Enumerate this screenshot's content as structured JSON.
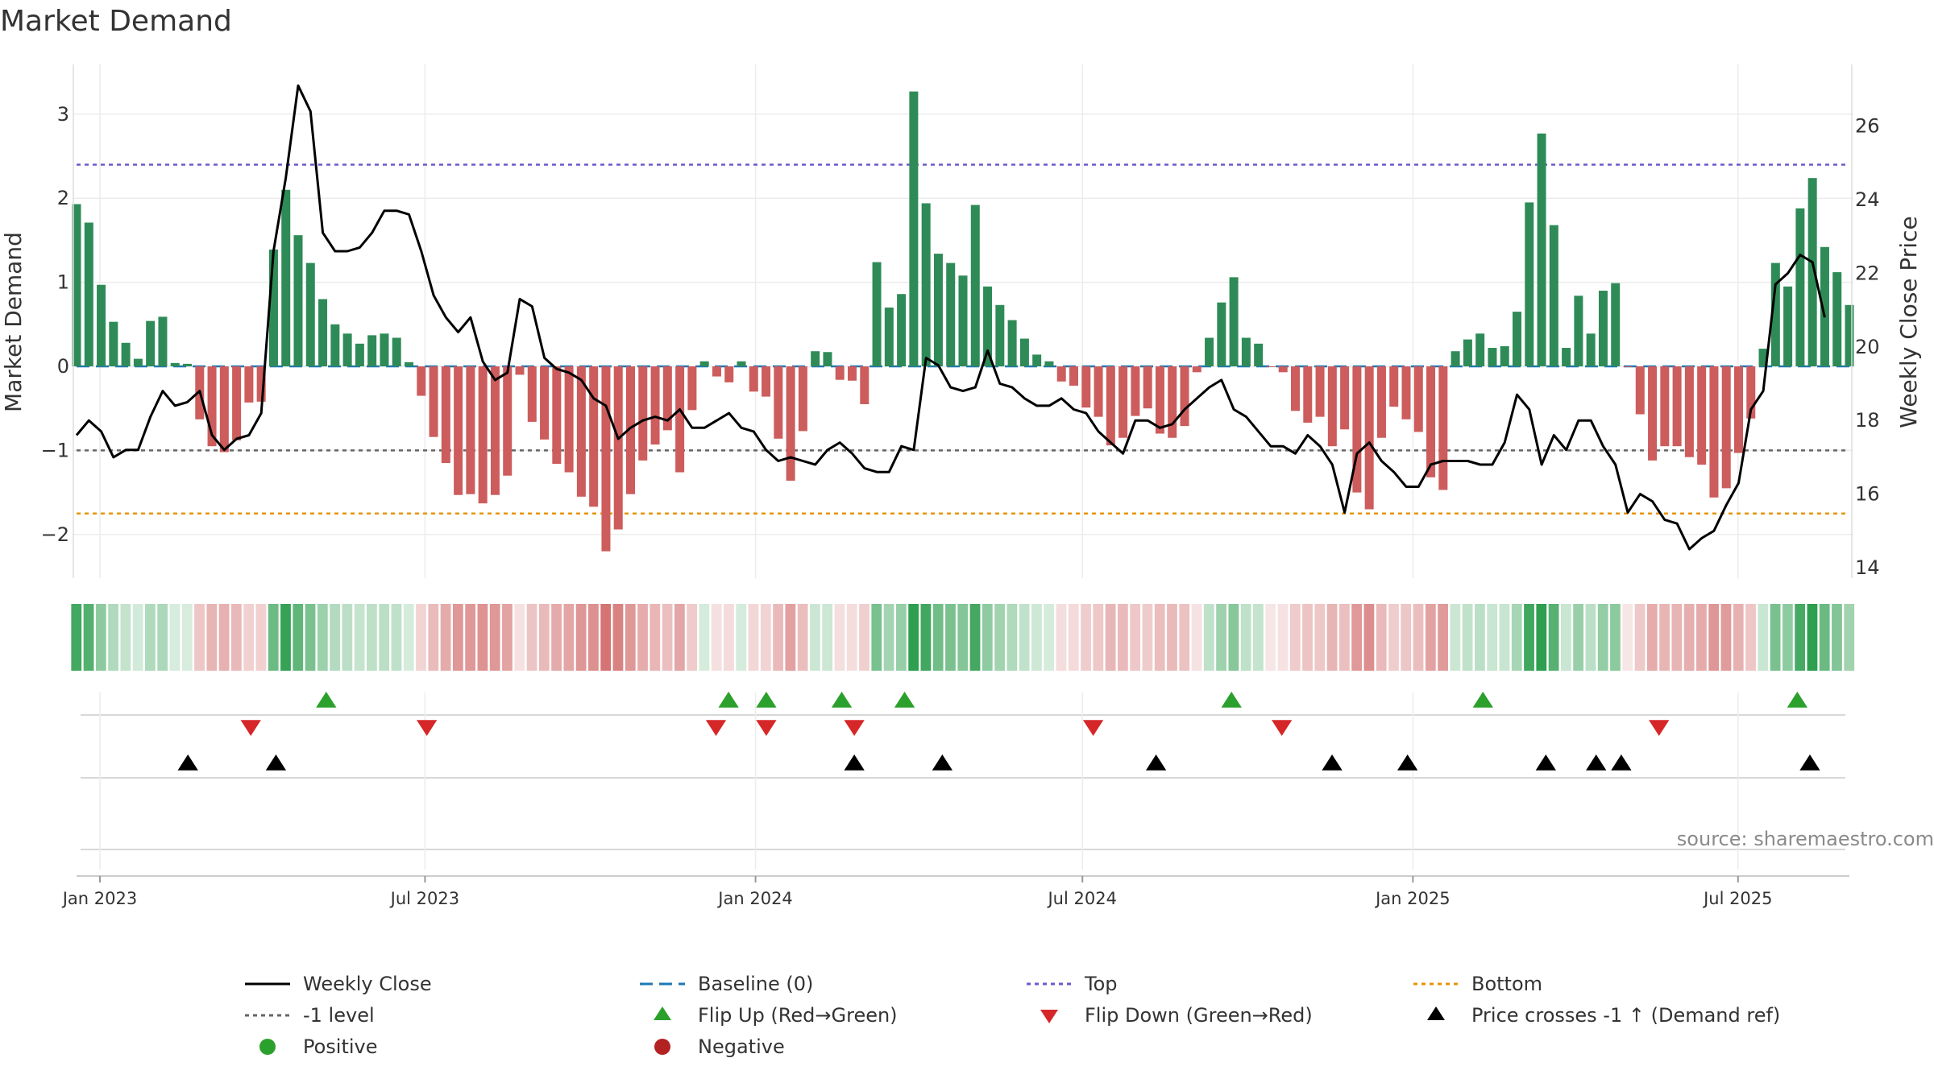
{
  "chart_data": {
    "type": "bar+line",
    "title": "Market Demand",
    "ylabel_left": "Market Demand",
    "ylabel_right": "Weekly Close Price",
    "ylim_left": [
      -2.5,
      3.6
    ],
    "ylim_right": [
      13.6,
      27.5
    ],
    "yticks_left": [
      3,
      2,
      1,
      0,
      -1,
      -2
    ],
    "yticks_left_labels": [
      "3",
      "2",
      "1",
      "0",
      "−1",
      "−2"
    ],
    "yticks_right": [
      26,
      24,
      22,
      20,
      18,
      16,
      14
    ],
    "x_start": "2022-12-19",
    "x_end": "2025-09-01",
    "x_interval": "weekly",
    "x_tick_dates": [
      "2023-01-01",
      "2023-07-01",
      "2024-01-01",
      "2024-07-01",
      "2025-01-01",
      "2025-07-01"
    ],
    "x_tick_labels": [
      "Jan 2023",
      "Jul 2023",
      "Jan 2024",
      "Jul 2024",
      "Jan 2025",
      "Jul 2025"
    ],
    "reference_lines": {
      "top": 2.4,
      "bottom": -1.75,
      "minus_one": -1,
      "baseline": 0
    },
    "demand": [
      1.93,
      1.71,
      0.97,
      0.53,
      0.28,
      0.09,
      0.54,
      0.59,
      0.04,
      0.03,
      -0.63,
      -0.95,
      -1.02,
      -0.88,
      -0.43,
      -0.42,
      1.39,
      2.1,
      1.56,
      1.23,
      0.8,
      0.5,
      0.39,
      0.27,
      0.37,
      0.39,
      0.34,
      0.05,
      -0.35,
      -0.84,
      -1.15,
      -1.53,
      -1.52,
      -1.63,
      -1.53,
      -1.3,
      -0.1,
      -0.66,
      -0.87,
      -1.16,
      -1.26,
      -1.55,
      -1.67,
      -2.2,
      -1.94,
      -1.52,
      -1.12,
      -0.93,
      -0.76,
      -1.26,
      -0.52,
      0.06,
      -0.12,
      -0.19,
      0.06,
      -0.3,
      -0.36,
      -0.86,
      -1.36,
      -0.77,
      0.18,
      0.17,
      -0.16,
      -0.17,
      -0.45,
      1.24,
      0.7,
      0.86,
      3.27,
      1.94,
      1.34,
      1.23,
      1.08,
      1.92,
      0.95,
      0.73,
      0.55,
      0.33,
      0.14,
      0.06,
      -0.18,
      -0.23,
      -0.49,
      -0.6,
      -0.94,
      -0.85,
      -0.59,
      -0.5,
      -0.8,
      -0.85,
      -0.71,
      -0.07,
      0.34,
      0.76,
      1.06,
      0.34,
      0.27,
      -0.01,
      -0.07,
      -0.53,
      -0.67,
      -0.6,
      -0.95,
      -0.75,
      -1.5,
      -1.7,
      -0.85,
      -0.48,
      -0.63,
      -0.78,
      -1.32,
      -1.47,
      0.18,
      0.32,
      0.39,
      0.22,
      0.24,
      0.65,
      1.95,
      2.77,
      1.68,
      0.22,
      0.84,
      0.39,
      0.9,
      0.99,
      -0.01,
      -0.57,
      -1.12,
      -0.95,
      -0.95,
      -1.08,
      -1.17,
      -1.56,
      -1.45,
      -1.03,
      -0.62,
      0.21,
      1.23,
      0.95,
      1.88,
      2.24,
      1.42,
      1.12,
      0.73
    ],
    "weekly_close": [
      17.6,
      18.0,
      17.7,
      17.0,
      17.2,
      17.2,
      18.1,
      18.8,
      18.4,
      18.5,
      18.8,
      17.6,
      17.2,
      17.5,
      17.6,
      18.2,
      22.6,
      24.6,
      27.1,
      26.4,
      23.1,
      22.6,
      22.6,
      22.7,
      23.1,
      23.7,
      23.7,
      23.6,
      22.6,
      21.4,
      20.8,
      20.4,
      20.8,
      19.6,
      19.1,
      19.3,
      21.3,
      21.1,
      19.7,
      19.4,
      19.3,
      19.1,
      18.6,
      18.4,
      17.5,
      17.8,
      18.0,
      18.1,
      18.0,
      18.3,
      17.8,
      17.8,
      18.0,
      18.2,
      17.8,
      17.7,
      17.2,
      16.9,
      17.0,
      16.9,
      16.8,
      17.2,
      17.4,
      17.1,
      16.7,
      16.6,
      16.6,
      17.3,
      17.2,
      19.7,
      19.5,
      18.9,
      18.8,
      18.9,
      19.9,
      19.0,
      18.9,
      18.6,
      18.4,
      18.4,
      18.6,
      18.3,
      18.2,
      17.7,
      17.4,
      17.1,
      18.0,
      18.0,
      17.8,
      17.9,
      18.3,
      18.6,
      18.9,
      19.1,
      18.3,
      18.1,
      17.7,
      17.3,
      17.3,
      17.1,
      17.6,
      17.3,
      16.8,
      15.5,
      17.1,
      17.4,
      16.9,
      16.6,
      16.2,
      16.2,
      16.8,
      16.9,
      16.9,
      16.9,
      16.8,
      16.8,
      17.4,
      18.7,
      18.3,
      16.8,
      17.6,
      17.2,
      18.0,
      18.0,
      17.3,
      16.8,
      15.5,
      16.0,
      15.8,
      15.3,
      15.2,
      14.5,
      14.8,
      15.0,
      15.7,
      16.3,
      18.3,
      18.8,
      21.7,
      22.0,
      22.5,
      22.3,
      20.8
    ],
    "flip_up_dates": [
      "2023-05-07",
      "2023-12-17",
      "2024-01-07",
      "2024-02-18",
      "2024-03-24",
      "2024-09-22",
      "2025-02-09",
      "2025-08-03"
    ],
    "flip_down_dates": [
      "2023-03-26",
      "2023-07-02",
      "2023-12-10",
      "2024-01-07",
      "2024-02-25",
      "2024-07-07",
      "2024-10-20",
      "2025-05-18"
    ],
    "price_cross_dates": [
      "2023-02-19",
      "2023-04-09",
      "2024-02-25",
      "2024-04-14",
      "2024-08-11",
      "2024-11-17",
      "2024-12-29",
      "2025-03-16",
      "2025-04-13",
      "2025-04-27",
      "2025-08-10"
    ]
  },
  "source_text": "source: sharemaestro.com",
  "colors": {
    "positive_bar": "#2e8b57",
    "negative_bar": "#cd5c5c",
    "line": "#000000",
    "top_line": "#6a5acd",
    "bottom_line": "#e69500",
    "minus_one_line": "#666666",
    "baseline": "#1f77b4",
    "flip_up": "#2ca02c",
    "flip_down": "#d62728",
    "cross": "#000000",
    "positive_dot": "#2ca02c",
    "negative_dot": "#b22222"
  },
  "legend": {
    "weekly_close": "Weekly Close",
    "baseline": "Baseline (0)",
    "top": "Top",
    "bottom": "Bottom",
    "minus_one": "-1 level",
    "flip_up": "Flip Up (Red→Green)",
    "flip_down": "Flip Down (Green→Red)",
    "price_cross": "Price crosses -1 ↑ (Demand ref)",
    "positive": "Positive",
    "negative": "Negative"
  }
}
